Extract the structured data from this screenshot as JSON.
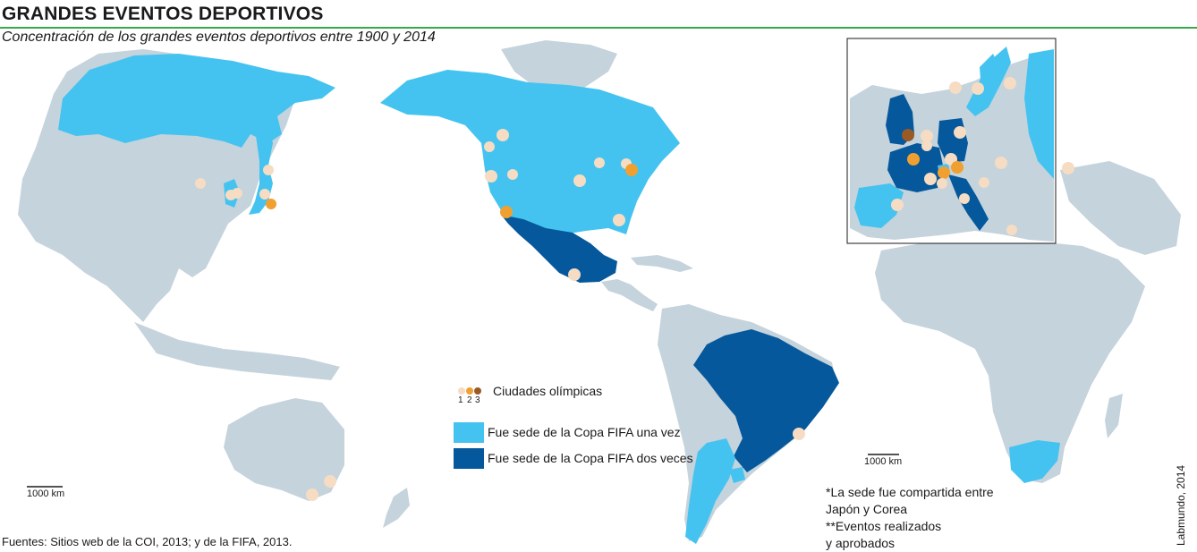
{
  "title": "GRANDES EVENTOS DEPORTIVOS",
  "subtitle": "Concentración de los grandes eventos deportivos entre 1900 y 2014",
  "legend": {
    "olympic_label": "Ciudades olímpicas",
    "olympic_counts": [
      "1",
      "2",
      "3"
    ],
    "fifa_once": "Fue sede de la Copa FIFA una vez",
    "fifa_twice": "Fue sede de la Copa FIFA dos veces"
  },
  "colors": {
    "land": "#c5d3dc",
    "fifa_once": "#45c3f0",
    "fifa_twice": "#05589b",
    "olympic_1": "#f6dcc3",
    "olympic_2": "#f0a030",
    "olympic_3": "#9a5a26"
  },
  "scale": {
    "main": "1000 km",
    "inset": "1000 km"
  },
  "footnotes": {
    "line1": "*La sede fue compartida entre",
    "line2": "Japón y Corea",
    "line3": "**Eventos realizados",
    "line4": "y aprobados"
  },
  "source": "Fuentes: Sitios web de la COI, 2013; y de la FIFA, 2013.",
  "credit": "Labmundo, 2014"
}
